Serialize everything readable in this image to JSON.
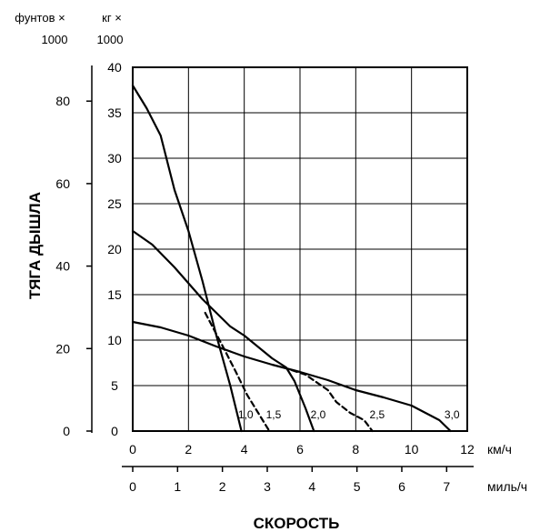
{
  "chart_data": {
    "type": "line",
    "title": "",
    "xlabel": "СКОРОСТЬ",
    "ylabel": "ТЯГА ДЫШЛА",
    "grid": true,
    "x_axes": {
      "kmh": {
        "unit": "км/ч",
        "range": [
          0,
          12
        ],
        "ticks": [
          "0",
          "2",
          "4",
          "6",
          "8",
          "10",
          "12"
        ]
      },
      "mph": {
        "unit": "миль/ч",
        "range": [
          0,
          7.46
        ],
        "ticks": [
          "0",
          "1",
          "2",
          "3",
          "4",
          "5",
          "6",
          "7"
        ]
      }
    },
    "y_axes": {
      "kg": {
        "unit_line1": "кг ×",
        "unit_line2": "1000",
        "range": [
          0,
          40
        ],
        "ticks": [
          "0",
          "5",
          "10",
          "15",
          "20",
          "25",
          "30",
          "35",
          "40"
        ]
      },
      "lbs": {
        "unit_line1": "фунтов ×",
        "unit_line2": "1000",
        "range": [
          0,
          88.2
        ],
        "ticks": [
          "0",
          "20",
          "40",
          "60",
          "80"
        ]
      }
    },
    "series": [
      {
        "name": "1,0",
        "style": "solid",
        "points": [
          [
            0,
            38.0
          ],
          [
            0.5,
            35.5
          ],
          [
            1.0,
            32.5
          ],
          [
            1.5,
            26.5
          ],
          [
            2.0,
            22.0
          ],
          [
            2.5,
            16.5
          ],
          [
            3.0,
            10.5
          ],
          [
            3.5,
            5.0
          ],
          [
            3.9,
            0
          ]
        ]
      },
      {
        "name": "1,5",
        "style": "dashed",
        "points": [
          [
            2.6,
            13.0
          ],
          [
            3.2,
            9.5
          ],
          [
            3.7,
            6.5
          ],
          [
            4.1,
            4.0
          ],
          [
            4.5,
            2.0
          ],
          [
            4.9,
            0
          ]
        ]
      },
      {
        "name": "2,0",
        "style": "solid",
        "points": [
          [
            0,
            22.0
          ],
          [
            0.7,
            20.5
          ],
          [
            1.5,
            18.0
          ],
          [
            2.5,
            14.5
          ],
          [
            3.5,
            11.5
          ],
          [
            4.0,
            10.5
          ],
          [
            5.0,
            8.0
          ],
          [
            5.5,
            7.0
          ],
          [
            5.8,
            5.5
          ],
          [
            6.2,
            2.5
          ],
          [
            6.5,
            0
          ]
        ]
      },
      {
        "name": "2,5",
        "style": "dashed",
        "points": [
          [
            5.4,
            7.0
          ],
          [
            6.2,
            6.2
          ],
          [
            7.0,
            4.5
          ],
          [
            7.3,
            3.2
          ],
          [
            7.8,
            2.0
          ],
          [
            8.3,
            1.2
          ],
          [
            8.6,
            0
          ]
        ]
      },
      {
        "name": "3,0",
        "style": "solid",
        "points": [
          [
            0,
            12.0
          ],
          [
            1.0,
            11.4
          ],
          [
            2.0,
            10.5
          ],
          [
            3.0,
            9.3
          ],
          [
            4.0,
            8.2
          ],
          [
            5.0,
            7.3
          ],
          [
            6.0,
            6.5
          ],
          [
            7.0,
            5.6
          ],
          [
            8.0,
            4.5
          ],
          [
            9.0,
            3.7
          ],
          [
            10.0,
            2.8
          ],
          [
            11.0,
            1.2
          ],
          [
            11.4,
            0
          ]
        ]
      }
    ]
  }
}
